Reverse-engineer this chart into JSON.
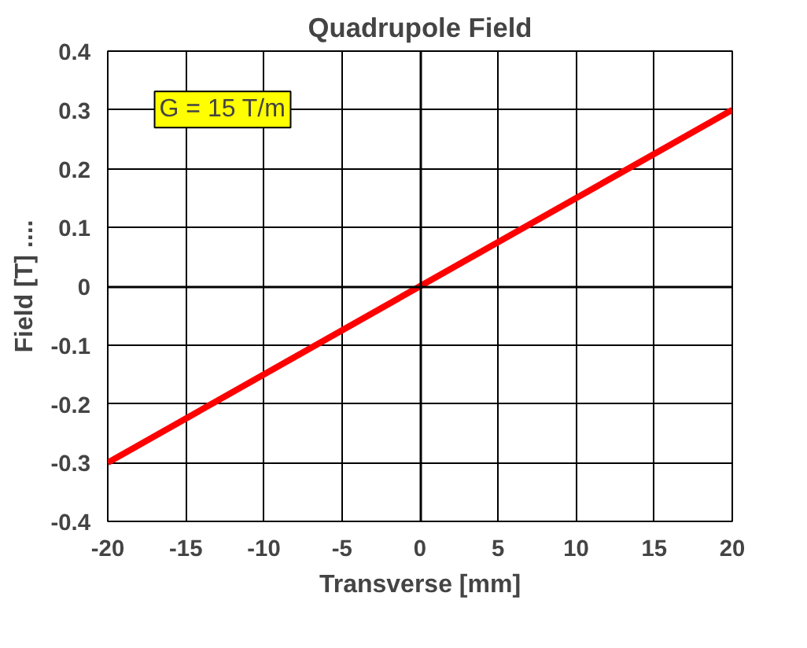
{
  "chart_data": {
    "type": "line",
    "title": "Quadrupole Field",
    "xlabel": "Transverse [mm]",
    "ylabel": "Field [T] ....",
    "annotations": [
      "G = 15 T/m"
    ],
    "x": [
      -20,
      20
    ],
    "series": [
      {
        "color": "#ff0000",
        "values": [
          -0.3,
          0.3
        ]
      }
    ],
    "xlim": [
      -20,
      20
    ],
    "xticks": [
      -20,
      -15,
      -10,
      -5,
      0,
      5,
      10,
      15,
      20
    ],
    "ylim": [
      -0.4,
      0.4
    ],
    "yticks": [
      -0.4,
      -0.3,
      -0.2,
      -0.1,
      0,
      0.1,
      0.2,
      0.3,
      0.4
    ],
    "grid": true,
    "marker": "none",
    "line_style": "solid"
  }
}
